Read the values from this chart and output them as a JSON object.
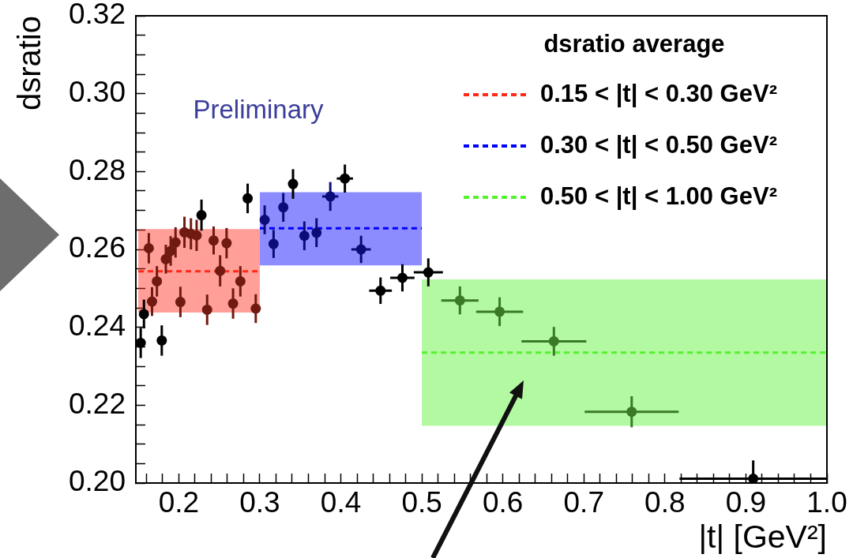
{
  "chart_data": {
    "type": "scatter",
    "xlabel": "|t| [GeV²]",
    "ylabel": "dsratio",
    "legend_title": "dsratio average",
    "legend": "top right",
    "marker": "circle",
    "annotations": [
      "Preliminary"
    ],
    "xlim": [
      0.147,
      1.0
    ],
    "ylim": [
      0.2,
      0.32
    ],
    "xticks": [
      {
        "value": 0.16,
        "label": null
      },
      {
        "value": 0.18,
        "label": null
      },
      0.2,
      {
        "value": 0.22,
        "label": null
      },
      {
        "value": 0.24,
        "label": null
      },
      {
        "value": 0.26,
        "label": null
      },
      {
        "value": 0.28,
        "label": null
      },
      0.3,
      {
        "value": 0.32,
        "label": null
      },
      {
        "value": 0.34,
        "label": null
      },
      {
        "value": 0.36,
        "label": null
      },
      {
        "value": 0.38,
        "label": null
      },
      0.4,
      {
        "value": 0.42,
        "label": null
      },
      {
        "value": 0.44,
        "label": null
      },
      {
        "value": 0.46,
        "label": null
      },
      {
        "value": 0.48,
        "label": null
      },
      0.5,
      {
        "value": 0.52,
        "label": null
      },
      {
        "value": 0.54,
        "label": null
      },
      {
        "value": 0.56,
        "label": null
      },
      {
        "value": 0.58,
        "label": null
      },
      0.6,
      {
        "value": 0.62,
        "label": null
      },
      {
        "value": 0.64,
        "label": null
      },
      {
        "value": 0.66,
        "label": null
      },
      {
        "value": 0.68,
        "label": null
      },
      0.7,
      {
        "value": 0.72,
        "label": null
      },
      {
        "value": 0.74,
        "label": null
      },
      {
        "value": 0.76,
        "label": null
      },
      {
        "value": 0.78,
        "label": null
      },
      0.8,
      {
        "value": 0.82,
        "label": null
      },
      {
        "value": 0.84,
        "label": null
      },
      {
        "value": 0.86,
        "label": null
      },
      {
        "value": 0.88,
        "label": null
      },
      0.9,
      {
        "value": 0.92,
        "label": null
      },
      {
        "value": 0.94,
        "label": null
      },
      {
        "value": 0.96,
        "label": null
      },
      {
        "value": 0.98,
        "label": null
      },
      {
        "value": 1.0,
        "label": "1.0"
      }
    ],
    "yticks": [
      {
        "value": 0.2,
        "label": "0.20"
      },
      {
        "value": 0.205,
        "label": null
      },
      {
        "value": 0.21,
        "label": null
      },
      {
        "value": 0.215,
        "label": null
      },
      0.22,
      {
        "value": 0.225,
        "label": null
      },
      {
        "value": 0.23,
        "label": null
      },
      {
        "value": 0.235,
        "label": null
      },
      0.24,
      {
        "value": 0.245,
        "label": null
      },
      {
        "value": 0.25,
        "label": null
      },
      {
        "value": 0.255,
        "label": null
      },
      0.26,
      {
        "value": 0.265,
        "label": null
      },
      {
        "value": 0.27,
        "label": null
      },
      {
        "value": 0.275,
        "label": null
      },
      0.28,
      {
        "value": 0.285,
        "label": null
      },
      {
        "value": 0.29,
        "label": null
      },
      {
        "value": 0.295,
        "label": null
      },
      {
        "value": 0.3,
        "label": "0.30"
      },
      {
        "value": 0.305,
        "label": null
      },
      {
        "value": 0.31,
        "label": null
      },
      {
        "value": 0.315,
        "label": null
      },
      0.32
    ],
    "series": [
      {
        "x": [
          0.153,
          0.157,
          0.163,
          0.167,
          0.173,
          0.179,
          0.184,
          0.19,
          0.196,
          0.202,
          0.207,
          0.215,
          0.222,
          0.228,
          0.235,
          0.243,
          0.251,
          0.259,
          0.267,
          0.276,
          0.285,
          0.295,
          0.306,
          0.317,
          0.329,
          0.341,
          0.355,
          0.37,
          0.387,
          0.405,
          0.425,
          0.449,
          0.476,
          0.508,
          0.547,
          0.596,
          0.663,
          0.759,
          0.909
        ],
        "values": [
          0.236,
          0.2434,
          0.2603,
          0.2466,
          0.2518,
          0.2366,
          0.2575,
          0.2596,
          0.2618,
          0.2465,
          0.2644,
          0.264,
          0.2636,
          0.2688,
          0.2445,
          0.2623,
          0.2545,
          0.2616,
          0.2461,
          0.2518,
          0.2731,
          0.2448,
          0.2676,
          0.2614,
          0.2708,
          0.2768,
          0.2635,
          0.2643,
          0.2736,
          0.2782,
          0.26,
          0.2494,
          0.2527,
          0.2541,
          0.2469,
          0.244,
          0.2364,
          0.2183,
          0.2011
        ],
        "colors": [
          "#000000",
          "#000000",
          "#701a12",
          "#701a12",
          "#701a12",
          "#000000",
          "#701a12",
          "#701a12",
          "#701a12",
          "#701a12",
          "#701a12",
          "#701a12",
          "#701a12",
          "#000000",
          "#701a12",
          "#701a12",
          "#701a12",
          "#701a12",
          "#701a12",
          "#701a12",
          "#000000",
          "#701a12",
          "#0c0c78",
          "#0c0c78",
          "#0c0c78",
          "#000000",
          "#0c0c78",
          "#0c0c78",
          "#0c0c78",
          "#000000",
          "#0c0c78",
          "#000000",
          "#000000",
          "#000000",
          "#3a7a26",
          "#3a7a26",
          "#3a7a26",
          "#3a7a26",
          "#000000"
        ],
        "errors": [
          0.0039,
          0.0037,
          0.0039,
          0.0037,
          0.0039,
          0.0039,
          0.0037,
          0.0038,
          0.0039,
          0.0039,
          0.004,
          0.004,
          0.004,
          0.004,
          0.0039,
          0.0036,
          0.004,
          0.0039,
          0.0039,
          0.0039,
          0.0038,
          0.0037,
          0.0037,
          0.0036,
          0.0037,
          0.0038,
          0.0037,
          0.0037,
          0.0037,
          0.0036,
          0.0035,
          0.0034,
          0.0035,
          0.0036,
          0.0036,
          0.0037,
          0.0037,
          0.004,
          [
            0.2,
            0.2058
          ]
        ],
        "xerrors": [
          null,
          null,
          null,
          null,
          null,
          null,
          null,
          null,
          null,
          null,
          null,
          null,
          null,
          null,
          null,
          null,
          null,
          null,
          null,
          null,
          null,
          null,
          null,
          null,
          null,
          null,
          null,
          null,
          0.01,
          0.01,
          0.012,
          0.014,
          0.015,
          0.018,
          0.023,
          0.029,
          0.04,
          0.058,
          0.091
        ]
      },
      {
        "type": "line",
        "name": "0.15 < |t| < 0.30 GeV²",
        "color": "#ff2a1a",
        "marker": "none",
        "line_style": "dashed",
        "x": [
          0.15,
          0.3
        ],
        "values": [
          0.2544,
          0.2544
        ],
        "lower": [
          0.2438,
          0.2438
        ],
        "upper": [
          0.2652,
          0.2652
        ]
      },
      {
        "type": "line",
        "name": "0.30 < |t| < 0.50 GeV²",
        "color": "#0000ff",
        "marker": "none",
        "line_style": "dashed",
        "x": [
          0.3,
          0.5
        ],
        "values": [
          0.2654,
          0.2654
        ],
        "lower": [
          0.2559,
          0.2559
        ],
        "upper": [
          0.2747,
          0.2747
        ]
      },
      {
        "type": "line",
        "name": "0.50 < |t| < 1.00 GeV²",
        "color": "#55f22f",
        "marker": "none",
        "line_style": "dashed",
        "x": [
          0.5,
          1.0
        ],
        "values": [
          0.2335,
          0.2335
        ],
        "lower": [
          0.2147,
          0.2147
        ],
        "upper": [
          0.2523,
          0.2523
        ]
      }
    ]
  }
}
